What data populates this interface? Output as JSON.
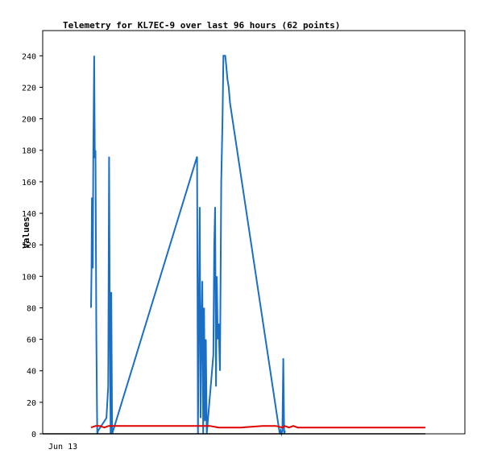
{
  "title": "Telemetry for KL7EC-9 over last 96 hours (62 points)",
  "chart_data": {
    "type": "line",
    "title": "Telemetry for KL7EC-9 over last 96 hours (62 points)",
    "xlabel": "",
    "ylabel": "Values",
    "x_tick_labels": [
      "Jun 13"
    ],
    "y_ticks": [
      0,
      20,
      40,
      60,
      80,
      100,
      120,
      140,
      160,
      180,
      200,
      220,
      240
    ],
    "ylim": [
      0,
      256
    ],
    "xlim": [
      0,
      96
    ],
    "grid": false,
    "legend": "none",
    "series": [
      {
        "color": "#1a6fc4",
        "x": [
          11,
          11.1,
          11.2,
          11.4,
          11.5,
          11.7,
          11.85,
          12.0,
          12.2,
          12.4,
          12.6,
          14.5,
          14.9,
          15.1,
          15.25,
          15.45,
          15.6,
          15.8,
          35.1,
          35.3,
          35.5,
          35.7,
          35.9,
          36.1,
          36.3,
          36.5,
          36.7,
          36.9,
          37.1,
          37.3,
          38.8,
          39.0,
          39.2,
          39.4,
          39.6,
          39.8,
          40.0,
          40.3,
          40.6,
          40.9,
          41.1,
          41.3,
          41.5,
          41.7,
          42.0,
          42.3,
          42.6,
          53.9,
          54.1,
          54.3,
          54.5,
          54.7,
          54.9,
          55.1
        ],
        "y": [
          80,
          104,
          150,
          105,
          178,
          240,
          175,
          180,
          60,
          0,
          2,
          10,
          30,
          176,
          80,
          0,
          90,
          0,
          176,
          0,
          72,
          144,
          10,
          68,
          97,
          0,
          80,
          8,
          60,
          0,
          50,
          120,
          144,
          30,
          100,
          60,
          70,
          40,
          160,
          200,
          240,
          240,
          240,
          235,
          225,
          220,
          210,
          0,
          2,
          0,
          2,
          48,
          0,
          2
        ]
      },
      {
        "color": "#e00000",
        "x": [
          11,
          12,
          13,
          14,
          15,
          16,
          20,
          25,
          30,
          35,
          38,
          40,
          45,
          50,
          53,
          54.5,
          55,
          56,
          57,
          58,
          60,
          65,
          70,
          75,
          80,
          87
        ],
        "y": [
          4,
          5,
          5,
          4,
          5,
          5,
          5,
          5,
          5,
          5,
          5,
          4,
          4,
          5,
          5,
          4,
          5,
          4,
          5,
          4,
          4,
          4,
          4,
          4,
          4,
          4
        ]
      },
      {
        "color": "#000000",
        "x": [
          0,
          87
        ],
        "y": [
          0,
          0
        ]
      }
    ]
  }
}
